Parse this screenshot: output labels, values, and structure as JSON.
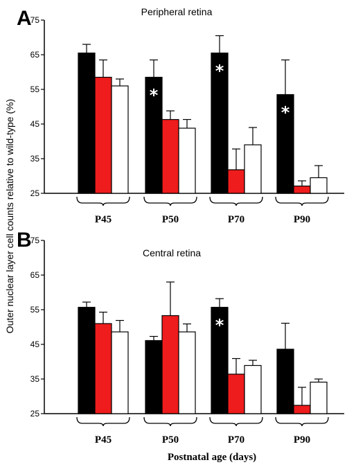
{
  "figure": {
    "ylabel": "Outer nuclear layer cell counts relative to wild-type (%)",
    "xlabel": "Postnatal age (days)",
    "significance_mark": "*",
    "colors": {
      "series1": "#000000",
      "series2": "#ee1c1c",
      "series3": "#ffffff",
      "outline": "#000000"
    }
  },
  "chart_data": [
    {
      "panel": "A",
      "type": "bar",
      "title": "Peripheral retina",
      "categories": [
        "P45",
        "P50",
        "P70",
        "P90"
      ],
      "ylim": [
        25,
        75
      ],
      "yticks": [
        25,
        35,
        45,
        55,
        65,
        75
      ],
      "grid": false,
      "legend": "none",
      "series": [
        {
          "values": [
            65.5,
            58.5,
            65.5,
            53.5
          ],
          "errors": [
            2.5,
            5,
            5,
            10
          ],
          "significant": [
            false,
            true,
            true,
            true
          ]
        },
        {
          "values": [
            58.5,
            46.3,
            31.8,
            27.1
          ],
          "errors": [
            5,
            2.5,
            6,
            1.5
          ],
          "significant": [
            false,
            false,
            false,
            false
          ]
        },
        {
          "values": [
            56.0,
            43.8,
            39.0,
            29.5
          ],
          "errors": [
            2,
            2.5,
            5,
            3.5
          ],
          "significant": [
            false,
            false,
            false,
            false
          ]
        }
      ]
    },
    {
      "panel": "B",
      "type": "bar",
      "title": "Central  retina",
      "categories": [
        "P45",
        "P50",
        "P70",
        "P90"
      ],
      "ylim": [
        25,
        75
      ],
      "yticks": [
        25,
        35,
        45,
        55,
        65,
        75
      ],
      "grid": false,
      "legend": "none",
      "series": [
        {
          "values": [
            55.7,
            46.1,
            55.7,
            43.6
          ],
          "errors": [
            1.5,
            1.2,
            2.5,
            7.5
          ],
          "significant": [
            false,
            false,
            true,
            false
          ]
        },
        {
          "values": [
            51.0,
            53.3,
            36.4,
            27.4
          ],
          "errors": [
            3.3,
            9.7,
            4.5,
            5.2
          ],
          "significant": [
            false,
            false,
            false,
            false
          ]
        },
        {
          "values": [
            48.6,
            48.6,
            38.9,
            34.1
          ],
          "errors": [
            3.3,
            2.3,
            1.5,
            0.9
          ],
          "significant": [
            false,
            false,
            false,
            false
          ]
        }
      ]
    }
  ]
}
